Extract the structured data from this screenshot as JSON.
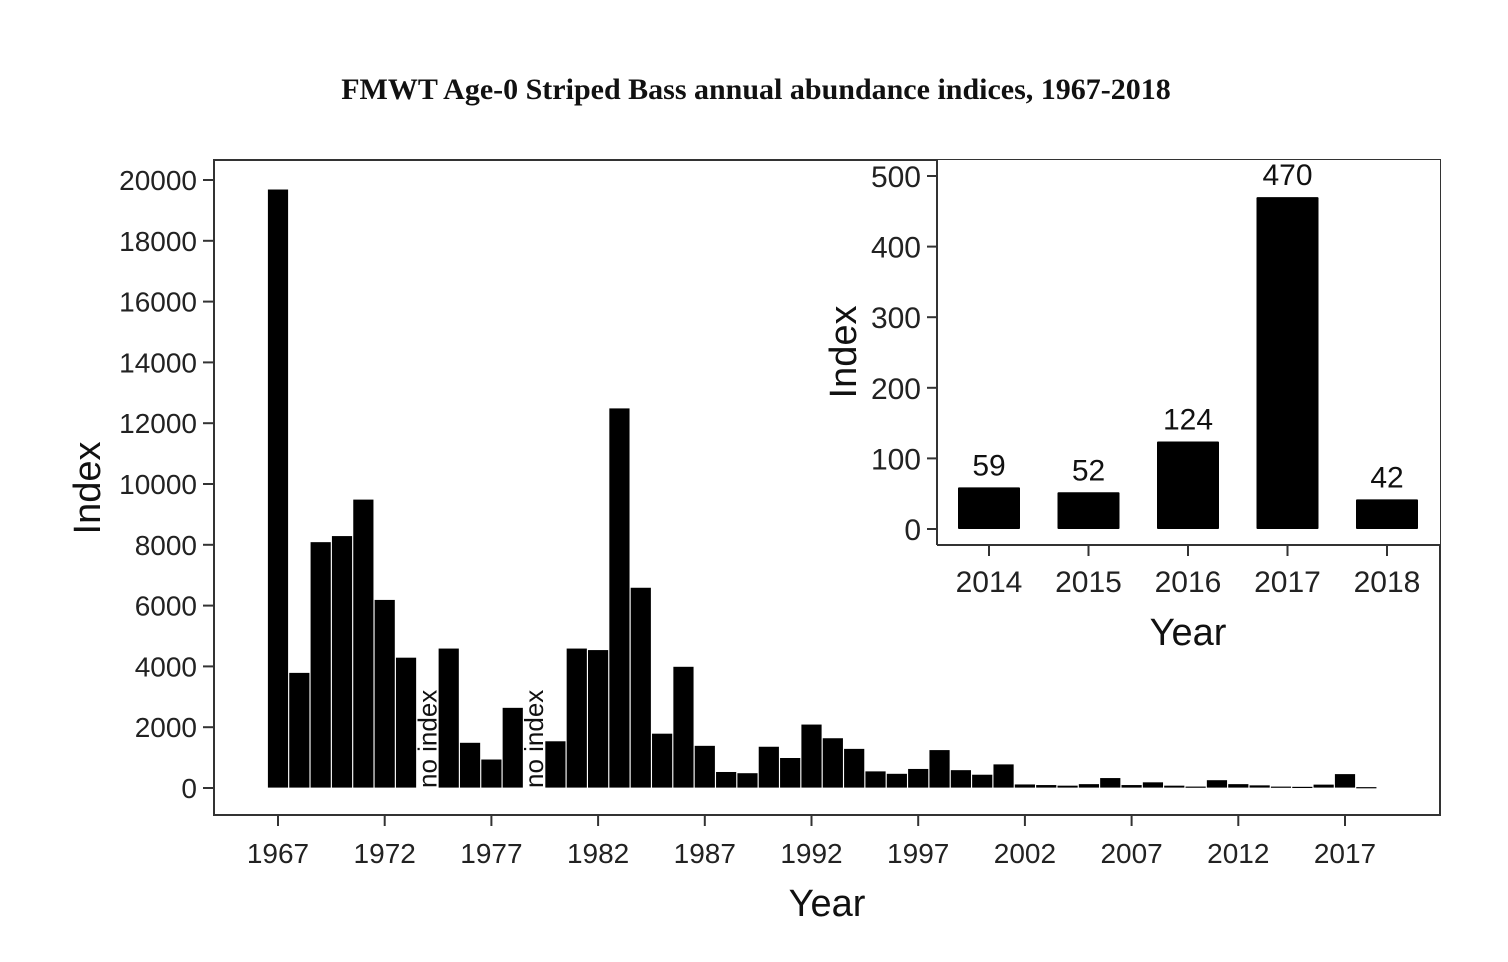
{
  "chart_data": [
    {
      "type": "bar",
      "id": "main",
      "title": "FMWT Age-0 Striped Bass annual abundance indices, 1967-2018",
      "xlabel": "Year",
      "ylabel": "Index",
      "ylim": [
        0,
        20000
      ],
      "yticks": [
        0,
        2000,
        4000,
        6000,
        8000,
        10000,
        12000,
        14000,
        16000,
        18000,
        20000
      ],
      "xticks": [
        1967,
        1972,
        1977,
        1982,
        1987,
        1992,
        1997,
        2002,
        2007,
        2012,
        2017
      ],
      "grid": false,
      "annotations": [
        {
          "year": 1974,
          "text": "no index"
        },
        {
          "year": 1979,
          "text": "no index"
        }
      ],
      "categories": [
        1967,
        1968,
        1969,
        1970,
        1971,
        1972,
        1973,
        1974,
        1975,
        1976,
        1977,
        1978,
        1979,
        1980,
        1981,
        1982,
        1983,
        1984,
        1985,
        1986,
        1987,
        1988,
        1989,
        1990,
        1991,
        1992,
        1993,
        1994,
        1995,
        1996,
        1997,
        1998,
        1999,
        2000,
        2001,
        2002,
        2003,
        2004,
        2005,
        2006,
        2007,
        2008,
        2009,
        2010,
        2011,
        2012,
        2013,
        2014,
        2015,
        2016,
        2017,
        2018
      ],
      "values": [
        19700,
        3800,
        8100,
        8300,
        9500,
        6200,
        4300,
        null,
        4600,
        1500,
        950,
        2650,
        null,
        1550,
        4600,
        4550,
        12500,
        6600,
        1800,
        4000,
        1400,
        540,
        500,
        1370,
        1000,
        2100,
        1650,
        1300,
        560,
        480,
        640,
        1260,
        600,
        450,
        790,
        130,
        110,
        90,
        140,
        340,
        110,
        200,
        90,
        60,
        270,
        140,
        100,
        59,
        52,
        124,
        470,
        42
      ]
    },
    {
      "type": "bar",
      "id": "inset",
      "title": "",
      "xlabel": "Year",
      "ylabel": "Index",
      "ylim": [
        0,
        500
      ],
      "yticks": [
        0,
        100,
        200,
        300,
        400,
        500
      ],
      "categories": [
        "2014",
        "2015",
        "2016",
        "2017",
        "2018"
      ],
      "values": [
        59,
        52,
        124,
        470,
        42
      ],
      "data_labels": [
        "59",
        "52",
        "124",
        "470",
        "42"
      ],
      "grid": false
    }
  ],
  "colors": {
    "bar": "#000000",
    "axis": "#222222",
    "background": "#ffffff"
  }
}
